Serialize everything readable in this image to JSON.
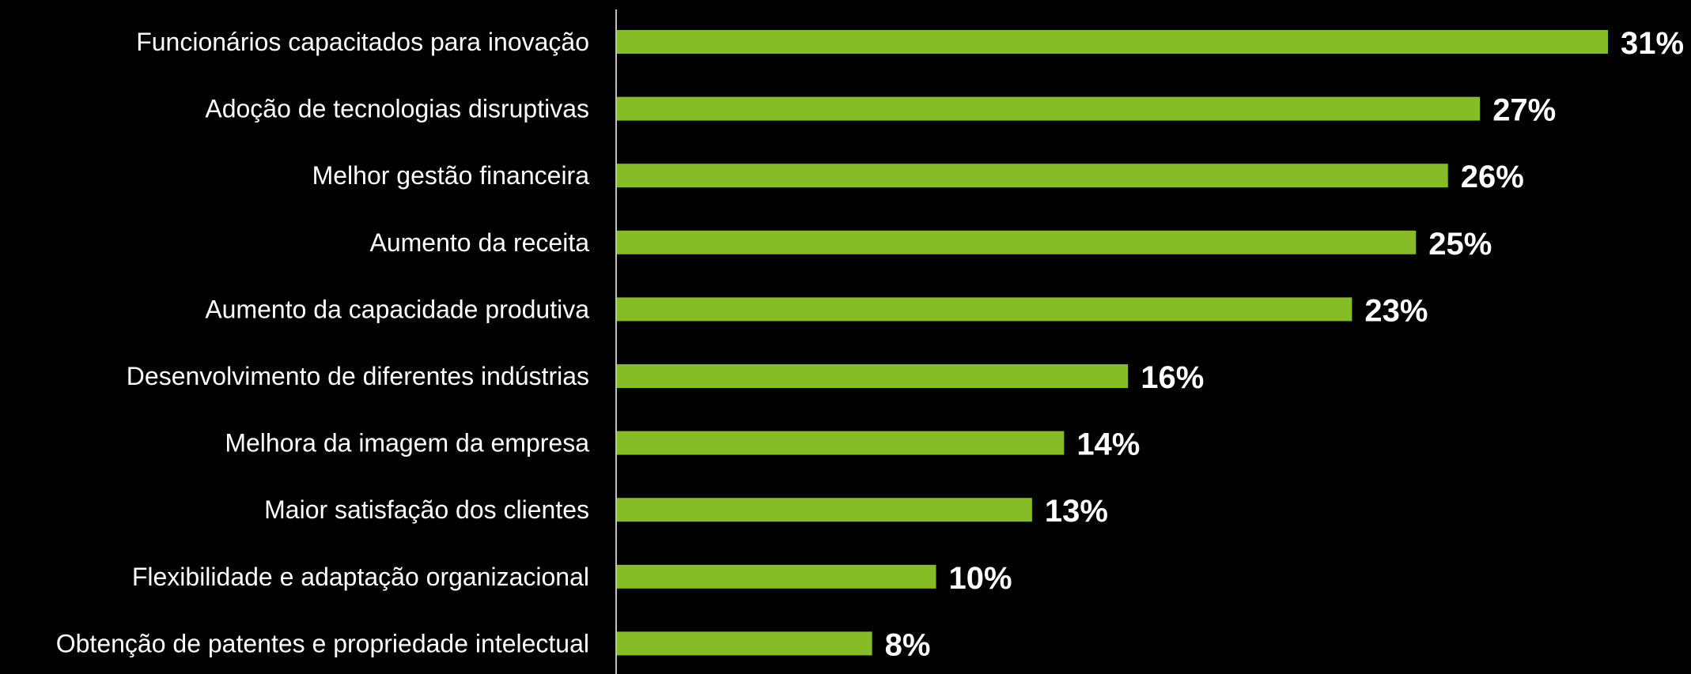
{
  "chart_data": {
    "type": "bar",
    "orientation": "horizontal",
    "categories": [
      "Funcionários capacitados para inovação",
      "Adoção de tecnologias disruptivas",
      "Melhor gestão financeira",
      "Aumento da receita",
      "Aumento da capacidade produtiva",
      "Desenvolvimento de diferentes indústrias",
      "Melhora da imagem da empresa",
      "Maior satisfação dos clientes",
      "Flexibilidade e adaptação organizacional",
      "Obtenção de patentes e propriedade intelectual"
    ],
    "values": [
      31,
      27,
      26,
      25,
      23,
      16,
      14,
      13,
      10,
      8
    ],
    "value_labels": [
      "31%",
      "27%",
      "26%",
      "25%",
      "23%",
      "16%",
      "14%",
      "13%",
      "10%",
      "8%"
    ],
    "title": "",
    "xlabel": "",
    "ylabel": "",
    "xlim": [
      0,
      31
    ],
    "grid": false,
    "legend": "none",
    "colors": {
      "bar": "#86bc25",
      "background": "#000000",
      "axis": "#bfbfbf",
      "text": "#ffffff"
    }
  }
}
